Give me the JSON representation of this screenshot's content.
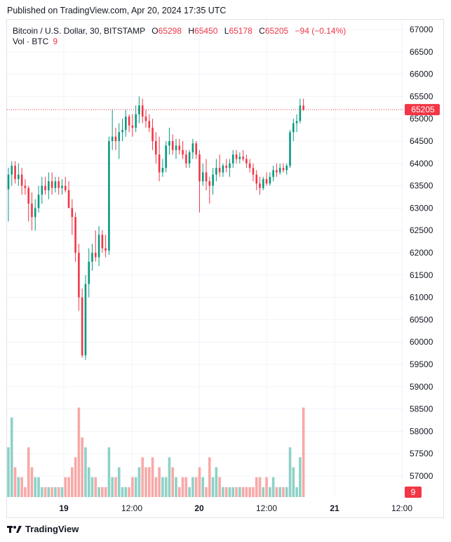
{
  "published": "Published on TradingView.com, Apr 20, 2024 17:35 UTC",
  "legend": {
    "symbol": "Bitcoin / U.S. Dollar, 30, BITSTAMP",
    "open_label": "O",
    "open": "65298",
    "high_label": "H",
    "high": "65450",
    "low_label": "L",
    "low": "65178",
    "close_label": "C",
    "close": "65205",
    "change": "−94 (−0.14%)",
    "volume_label": "Vol · BTC",
    "volume": "9"
  },
  "price_axis": [
    "67000",
    "66500",
    "66000",
    "65500",
    "65000",
    "64500",
    "64000",
    "63500",
    "63000",
    "62500",
    "62000",
    "61500",
    "61000",
    "60500",
    "60000",
    "59500",
    "59000",
    "58500",
    "58000",
    "57500",
    "57000"
  ],
  "time_axis": [
    "19",
    "12:00",
    "20",
    "12:00",
    "21",
    "12:00"
  ],
  "last_price_tag": "65205",
  "volume_tag": "9",
  "footer": {
    "brand": "TradingView",
    "logo_icon": "tradingview-logo-icon"
  },
  "colors": {
    "up": "#089981",
    "down": "#f23645",
    "vol_up": "#8ed1c7",
    "vol_down": "#f7a9a7",
    "grid": "#f0f3fa"
  },
  "chart_data": {
    "type": "candlestick",
    "interval": "30m",
    "ylim": [
      56700,
      67200
    ],
    "candles": [
      {
        "o": 63420,
        "h": 63900,
        "l": 62700,
        "c": 63750,
        "v": 5
      },
      {
        "o": 63750,
        "h": 64050,
        "l": 63500,
        "c": 63950,
        "v": 8
      },
      {
        "o": 63950,
        "h": 64050,
        "l": 63550,
        "c": 63650,
        "v": 3
      },
      {
        "o": 63650,
        "h": 64000,
        "l": 63500,
        "c": 63750,
        "v": 2
      },
      {
        "o": 63750,
        "h": 63900,
        "l": 63300,
        "c": 63500,
        "v": 2
      },
      {
        "o": 63500,
        "h": 63650,
        "l": 63300,
        "c": 63450,
        "v": 1
      },
      {
        "o": 63450,
        "h": 63500,
        "l": 62700,
        "c": 63100,
        "v": 5
      },
      {
        "o": 63100,
        "h": 63350,
        "l": 62500,
        "c": 62800,
        "v": 3
      },
      {
        "o": 62800,
        "h": 63200,
        "l": 62500,
        "c": 63000,
        "v": 2
      },
      {
        "o": 63000,
        "h": 63500,
        "l": 62900,
        "c": 63300,
        "v": 2
      },
      {
        "o": 63300,
        "h": 63700,
        "l": 63100,
        "c": 63500,
        "v": 1
      },
      {
        "o": 63500,
        "h": 63700,
        "l": 63300,
        "c": 63400,
        "v": 1
      },
      {
        "o": 63400,
        "h": 63800,
        "l": 63200,
        "c": 63600,
        "v": 1
      },
      {
        "o": 63600,
        "h": 63800,
        "l": 63300,
        "c": 63450,
        "v": 1
      },
      {
        "o": 63450,
        "h": 63700,
        "l": 63350,
        "c": 63600,
        "v": 1
      },
      {
        "o": 63600,
        "h": 63700,
        "l": 63300,
        "c": 63450,
        "v": 1
      },
      {
        "o": 63450,
        "h": 63650,
        "l": 63300,
        "c": 63500,
        "v": 1
      },
      {
        "o": 63500,
        "h": 63700,
        "l": 63350,
        "c": 63400,
        "v": 2
      },
      {
        "o": 63400,
        "h": 63600,
        "l": 63100,
        "c": 63000,
        "v": 2
      },
      {
        "o": 63000,
        "h": 63200,
        "l": 62400,
        "c": 62800,
        "v": 3
      },
      {
        "o": 62800,
        "h": 62900,
        "l": 61800,
        "c": 62000,
        "v": 4
      },
      {
        "o": 62000,
        "h": 62200,
        "l": 60700,
        "c": 61000,
        "v": 9
      },
      {
        "o": 61000,
        "h": 61200,
        "l": 59650,
        "c": 59700,
        "v": 6
      },
      {
        "o": 59700,
        "h": 61500,
        "l": 59600,
        "c": 61300,
        "v": 5
      },
      {
        "o": 61300,
        "h": 62100,
        "l": 61000,
        "c": 61800,
        "v": 3
      },
      {
        "o": 61800,
        "h": 62200,
        "l": 61600,
        "c": 62000,
        "v": 2
      },
      {
        "o": 62000,
        "h": 62500,
        "l": 61800,
        "c": 61900,
        "v": 2
      },
      {
        "o": 61900,
        "h": 62600,
        "l": 61700,
        "c": 62400,
        "v": 1
      },
      {
        "o": 62400,
        "h": 62500,
        "l": 62000,
        "c": 62100,
        "v": 1
      },
      {
        "o": 62100,
        "h": 62400,
        "l": 61900,
        "c": 62050,
        "v": 1
      },
      {
        "o": 62050,
        "h": 64600,
        "l": 61950,
        "c": 64500,
        "v": 5
      },
      {
        "o": 64500,
        "h": 65200,
        "l": 64300,
        "c": 64600,
        "v": 2
      },
      {
        "o": 64600,
        "h": 64800,
        "l": 64300,
        "c": 64500,
        "v": 2
      },
      {
        "o": 64500,
        "h": 64900,
        "l": 64100,
        "c": 64700,
        "v": 3
      },
      {
        "o": 64700,
        "h": 65000,
        "l": 64500,
        "c": 64750,
        "v": 1
      },
      {
        "o": 64750,
        "h": 65200,
        "l": 64600,
        "c": 65050,
        "v": 1
      },
      {
        "o": 65050,
        "h": 65100,
        "l": 64700,
        "c": 64850,
        "v": 1
      },
      {
        "o": 64850,
        "h": 65100,
        "l": 64600,
        "c": 64800,
        "v": 2
      },
      {
        "o": 64800,
        "h": 65300,
        "l": 64700,
        "c": 65100,
        "v": 2
      },
      {
        "o": 65100,
        "h": 65500,
        "l": 64900,
        "c": 65300,
        "v": 3
      },
      {
        "o": 65300,
        "h": 65450,
        "l": 64900,
        "c": 65050,
        "v": 4
      },
      {
        "o": 65050,
        "h": 65200,
        "l": 64800,
        "c": 64950,
        "v": 3
      },
      {
        "o": 64950,
        "h": 65100,
        "l": 64700,
        "c": 64800,
        "v": 3
      },
      {
        "o": 64800,
        "h": 65000,
        "l": 64300,
        "c": 64500,
        "v": 4
      },
      {
        "o": 64500,
        "h": 64700,
        "l": 64000,
        "c": 64200,
        "v": 2
      },
      {
        "o": 64200,
        "h": 64600,
        "l": 63600,
        "c": 63800,
        "v": 3
      },
      {
        "o": 63800,
        "h": 64100,
        "l": 63700,
        "c": 63900,
        "v": 2
      },
      {
        "o": 63900,
        "h": 64500,
        "l": 63800,
        "c": 64400,
        "v": 2
      },
      {
        "o": 64400,
        "h": 64800,
        "l": 64200,
        "c": 64500,
        "v": 4
      },
      {
        "o": 64500,
        "h": 64650,
        "l": 64200,
        "c": 64300,
        "v": 3
      },
      {
        "o": 64300,
        "h": 64550,
        "l": 64100,
        "c": 64400,
        "v": 2
      },
      {
        "o": 64400,
        "h": 64550,
        "l": 64200,
        "c": 64300,
        "v": 1
      },
      {
        "o": 64300,
        "h": 64500,
        "l": 64100,
        "c": 64200,
        "v": 2
      },
      {
        "o": 64200,
        "h": 64300,
        "l": 63900,
        "c": 64000,
        "v": 2
      },
      {
        "o": 64000,
        "h": 64300,
        "l": 63900,
        "c": 64250,
        "v": 1
      },
      {
        "o": 64250,
        "h": 64550,
        "l": 64100,
        "c": 64450,
        "v": 2
      },
      {
        "o": 64450,
        "h": 64500,
        "l": 64100,
        "c": 64200,
        "v": 2
      },
      {
        "o": 64200,
        "h": 64300,
        "l": 62900,
        "c": 63600,
        "v": 3
      },
      {
        "o": 63600,
        "h": 64000,
        "l": 63500,
        "c": 63800,
        "v": 2
      },
      {
        "o": 63800,
        "h": 64100,
        "l": 63400,
        "c": 63600,
        "v": 1
      },
      {
        "o": 63600,
        "h": 63700,
        "l": 63100,
        "c": 63500,
        "v": 4
      },
      {
        "o": 63500,
        "h": 63900,
        "l": 63300,
        "c": 63750,
        "v": 2
      },
      {
        "o": 63750,
        "h": 64100,
        "l": 63600,
        "c": 63900,
        "v": 3
      },
      {
        "o": 63900,
        "h": 64200,
        "l": 63700,
        "c": 63800,
        "v": 2
      },
      {
        "o": 63800,
        "h": 64000,
        "l": 63700,
        "c": 63950,
        "v": 1
      },
      {
        "o": 63950,
        "h": 64100,
        "l": 63800,
        "c": 63900,
        "v": 1
      },
      {
        "o": 63900,
        "h": 64100,
        "l": 63700,
        "c": 64000,
        "v": 1
      },
      {
        "o": 64000,
        "h": 64300,
        "l": 63900,
        "c": 64200,
        "v": 1
      },
      {
        "o": 64200,
        "h": 64300,
        "l": 64000,
        "c": 64100,
        "v": 1
      },
      {
        "o": 64100,
        "h": 64250,
        "l": 64000,
        "c": 64150,
        "v": 1
      },
      {
        "o": 64150,
        "h": 64300,
        "l": 64050,
        "c": 64100,
        "v": 1
      },
      {
        "o": 64100,
        "h": 64200,
        "l": 63900,
        "c": 64000,
        "v": 1
      },
      {
        "o": 64000,
        "h": 64100,
        "l": 63800,
        "c": 63900,
        "v": 1
      },
      {
        "o": 63900,
        "h": 64000,
        "l": 63600,
        "c": 63750,
        "v": 1
      },
      {
        "o": 63750,
        "h": 63850,
        "l": 63400,
        "c": 63550,
        "v": 2
      },
      {
        "o": 63550,
        "h": 63700,
        "l": 63300,
        "c": 63450,
        "v": 2
      },
      {
        "o": 63450,
        "h": 63700,
        "l": 63400,
        "c": 63650,
        "v": 1
      },
      {
        "o": 63650,
        "h": 63800,
        "l": 63500,
        "c": 63550,
        "v": 2
      },
      {
        "o": 63550,
        "h": 63800,
        "l": 63500,
        "c": 63700,
        "v": 1
      },
      {
        "o": 63700,
        "h": 63950,
        "l": 63600,
        "c": 63850,
        "v": 2
      },
      {
        "o": 63850,
        "h": 64000,
        "l": 63700,
        "c": 63800,
        "v": 1
      },
      {
        "o": 63800,
        "h": 64000,
        "l": 63750,
        "c": 63900,
        "v": 1
      },
      {
        "o": 63900,
        "h": 64000,
        "l": 63800,
        "c": 63850,
        "v": 1
      },
      {
        "o": 63850,
        "h": 64000,
        "l": 63750,
        "c": 63950,
        "v": 1
      },
      {
        "o": 63950,
        "h": 64750,
        "l": 63900,
        "c": 64700,
        "v": 5
      },
      {
        "o": 64700,
        "h": 65000,
        "l": 64500,
        "c": 64900,
        "v": 3
      },
      {
        "o": 64900,
        "h": 65100,
        "l": 64700,
        "c": 64950,
        "v": 1
      },
      {
        "o": 64950,
        "h": 65450,
        "l": 64900,
        "c": 65298,
        "v": 4
      },
      {
        "o": 65298,
        "h": 65450,
        "l": 65178,
        "c": 65205,
        "v": 9
      }
    ],
    "vol_ylim": [
      0,
      12
    ]
  }
}
